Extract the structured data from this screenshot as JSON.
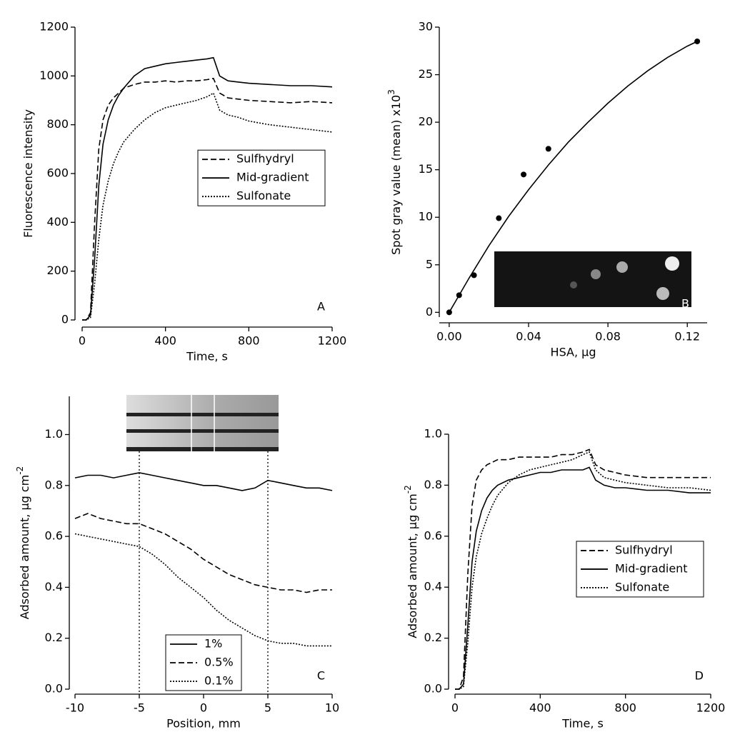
{
  "chart_data": [
    {
      "type": "line",
      "panel_label": "A",
      "xlabel": "Time, s",
      "ylabel": "Fluorescence intensity",
      "x": [
        0,
        20,
        40,
        60,
        80,
        100,
        125,
        150,
        175,
        200,
        250,
        300,
        350,
        400,
        450,
        500,
        550,
        600,
        630,
        660,
        700,
        750,
        800,
        900,
        1000,
        1100,
        1200
      ],
      "series": [
        {
          "name": "Sulfhydryl",
          "color": "#000000",
          "dash": "dashed",
          "values": [
            0,
            0,
            30,
            400,
            700,
            820,
            880,
            910,
            930,
            950,
            965,
            975,
            975,
            980,
            975,
            980,
            980,
            985,
            990,
            930,
            910,
            905,
            900,
            895,
            890,
            895,
            890
          ]
        },
        {
          "name": "Mid-gradient",
          "color": "#000000",
          "dash": "solid",
          "values": [
            0,
            0,
            20,
            250,
            550,
            720,
            820,
            880,
            920,
            950,
            1000,
            1030,
            1040,
            1050,
            1055,
            1060,
            1065,
            1070,
            1075,
            1000,
            980,
            975,
            970,
            965,
            960,
            960,
            955
          ]
        },
        {
          "name": "Sulfonate",
          "color": "#000000",
          "dash": "dotted",
          "values": [
            0,
            0,
            10,
            150,
            330,
            470,
            570,
            640,
            690,
            730,
            780,
            820,
            850,
            870,
            880,
            890,
            900,
            915,
            930,
            860,
            840,
            830,
            815,
            800,
            790,
            780,
            770
          ]
        }
      ],
      "xlim": [
        0,
        1200
      ],
      "xticks": [
        0,
        400,
        800,
        1200
      ],
      "ylim": [
        0,
        1200
      ],
      "yticks": [
        0,
        200,
        400,
        600,
        800,
        1000,
        1200
      ],
      "legend": "center right"
    },
    {
      "type": "scatter",
      "panel_label": "B",
      "xlabel": "HSA, µg",
      "ylabel": "Spot gray value (mean) x10",
      "ylabel_sup": "3",
      "series": [
        {
          "color": "#000000",
          "x": [
            0,
            0.005,
            0.0125,
            0.025,
            0.0375,
            0.05,
            0.125
          ],
          "values": [
            0,
            1.8,
            3.9,
            9.9,
            14.5,
            17.2,
            28.5
          ]
        }
      ],
      "fit": {
        "x": [
          0,
          0.01,
          0.02,
          0.03,
          0.04,
          0.05,
          0.06,
          0.07,
          0.08,
          0.09,
          0.1,
          0.11,
          0.12,
          0.125
        ],
        "values": [
          0,
          3.6,
          7.0,
          10.1,
          12.9,
          15.5,
          17.9,
          20.0,
          22.0,
          23.8,
          25.4,
          26.8,
          28.0,
          28.5
        ]
      },
      "xlim": [
        -0.005,
        0.13
      ],
      "xticks": [
        {
          "value": 0,
          "label": "0.00"
        },
        0.04,
        0.08,
        0.12
      ],
      "ylim": [
        -0.5,
        30
      ],
      "yticks": [
        0,
        5,
        10,
        15,
        20,
        25,
        30
      ]
    },
    {
      "type": "line",
      "panel_label": "C",
      "xlabel": "Position, mm",
      "ylabel": "Adsorbed amount, µg cm",
      "ylabel_sup": "-2",
      "x": [
        -10,
        -9,
        -8,
        -7,
        -6,
        -5,
        -4,
        -3,
        -2,
        -1,
        0,
        1,
        2,
        3,
        4,
        5,
        6,
        7,
        8,
        9,
        10
      ],
      "series": [
        {
          "name": "1%",
          "color": "#000000",
          "dash": "solid",
          "values": [
            0.83,
            0.84,
            0.84,
            0.83,
            0.84,
            0.85,
            0.84,
            0.83,
            0.82,
            0.81,
            0.8,
            0.8,
            0.79,
            0.78,
            0.79,
            0.82,
            0.81,
            0.8,
            0.79,
            0.79,
            0.78
          ]
        },
        {
          "name": "0.5%",
          "color": "#000000",
          "dash": "dashed",
          "values": [
            0.67,
            0.69,
            0.67,
            0.66,
            0.65,
            0.65,
            0.63,
            0.61,
            0.58,
            0.55,
            0.51,
            0.48,
            0.45,
            0.43,
            0.41,
            0.4,
            0.39,
            0.39,
            0.38,
            0.39,
            0.39
          ]
        },
        {
          "name": "0.1%",
          "color": "#000000",
          "dash": "dotted",
          "values": [
            0.61,
            0.6,
            0.59,
            0.58,
            0.57,
            0.56,
            0.53,
            0.49,
            0.44,
            0.4,
            0.36,
            0.31,
            0.27,
            0.24,
            0.21,
            0.19,
            0.18,
            0.18,
            0.17,
            0.17,
            0.17
          ]
        }
      ],
      "vlines": [
        -5,
        5
      ],
      "xlim": [
        -10,
        10
      ],
      "xticks": [
        -10,
        -5,
        0,
        5,
        10
      ],
      "ylim": [
        0,
        1.15
      ],
      "yticks": [
        {
          "value": 0,
          "label": "0.0"
        },
        0.2,
        0.4,
        0.6,
        0.8,
        {
          "value": 1,
          "label": "1.0"
        }
      ],
      "legend": "lower center"
    },
    {
      "type": "line",
      "panel_label": "D",
      "xlabel": "Time, s",
      "ylabel": "Adsorbed amount, µg cm",
      "ylabel_sup": "-2",
      "x": [
        0,
        20,
        40,
        60,
        80,
        100,
        125,
        150,
        175,
        200,
        250,
        300,
        350,
        400,
        450,
        500,
        550,
        600,
        630,
        660,
        700,
        750,
        800,
        900,
        1000,
        1100,
        1200
      ],
      "series": [
        {
          "name": "Sulfhydryl",
          "color": "#000000",
          "dash": "dashed",
          "values": [
            0,
            0,
            0.05,
            0.45,
            0.72,
            0.82,
            0.86,
            0.88,
            0.89,
            0.9,
            0.9,
            0.91,
            0.91,
            0.91,
            0.91,
            0.92,
            0.92,
            0.93,
            0.94,
            0.88,
            0.86,
            0.85,
            0.84,
            0.83,
            0.83,
            0.83,
            0.83
          ]
        },
        {
          "name": "Mid-gradient",
          "color": "#000000",
          "dash": "solid",
          "values": [
            0,
            0,
            0.02,
            0.25,
            0.5,
            0.62,
            0.7,
            0.75,
            0.78,
            0.8,
            0.82,
            0.83,
            0.84,
            0.85,
            0.85,
            0.86,
            0.86,
            0.86,
            0.87,
            0.82,
            0.8,
            0.79,
            0.79,
            0.78,
            0.78,
            0.77,
            0.77
          ]
        },
        {
          "name": "Sulfonate",
          "color": "#000000",
          "dash": "dotted",
          "values": [
            0,
            0,
            0.01,
            0.18,
            0.4,
            0.52,
            0.61,
            0.67,
            0.72,
            0.76,
            0.81,
            0.84,
            0.86,
            0.87,
            0.88,
            0.89,
            0.9,
            0.92,
            0.93,
            0.86,
            0.83,
            0.82,
            0.81,
            0.8,
            0.79,
            0.79,
            0.78
          ]
        }
      ],
      "xlim": [
        0,
        1200
      ],
      "xticks": [
        0,
        400,
        800,
        1200
      ],
      "ylim": [
        0,
        1
      ],
      "yticks": [
        {
          "value": 0,
          "label": "0.0"
        },
        0.2,
        0.4,
        0.6,
        0.8,
        {
          "value": 1,
          "label": "1.0"
        }
      ],
      "legend": "center right"
    }
  ]
}
